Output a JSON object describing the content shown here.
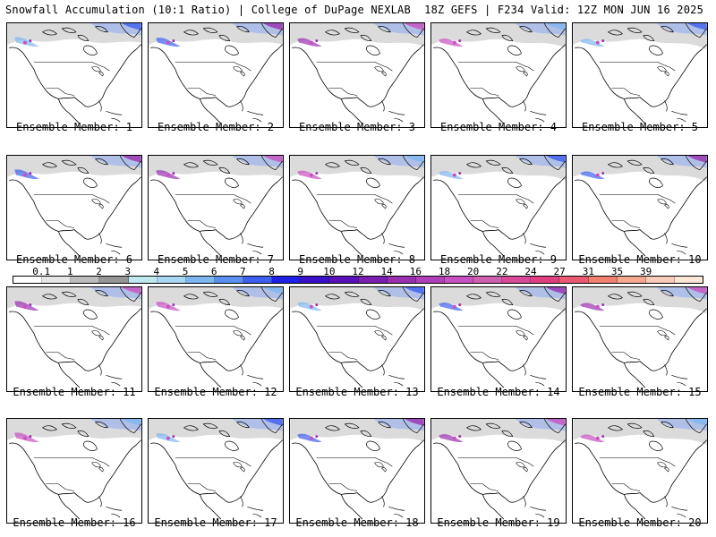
{
  "header": {
    "left": "Snowfall Accumulation (10:1 Ratio) | College of DuPage NEXLAB",
    "right": "18Z GEFS | F234 Valid: 12Z MON JUN 16 2025"
  },
  "members": [
    "Ensemble Member: 1",
    "Ensemble Member: 2",
    "Ensemble Member: 3",
    "Ensemble Member: 4",
    "Ensemble Member: 5",
    "Ensemble Member: 6",
    "Ensemble Member: 7",
    "Ensemble Member: 8",
    "Ensemble Member: 9",
    "Ensemble Member: 10",
    "Ensemble Member: 11",
    "Ensemble Member: 12",
    "Ensemble Member: 13",
    "Ensemble Member: 14",
    "Ensemble Member: 15",
    "Ensemble Member: 16",
    "Ensemble Member: 17",
    "Ensemble Member: 18",
    "Ensemble Member: 19",
    "Ensemble Member: 20"
  ],
  "colorbar": {
    "labels": [
      "0.1",
      "1",
      "2",
      "3",
      "4",
      "5",
      "6",
      "7",
      "8",
      "9",
      "10",
      "12",
      "14",
      "16",
      "18",
      "20",
      "22",
      "24",
      "27",
      "31",
      "35",
      "39"
    ],
    "colors": [
      "#ffffff",
      "#e6e6e6",
      "#bdbdbd",
      "#969696",
      "#bfe8f0",
      "#a9d8f5",
      "#7fb6f0",
      "#5b8ff0",
      "#3f5ff0",
      "#2020e6",
      "#3a10c8",
      "#5a10b8",
      "#7a20b0",
      "#9a30b0",
      "#b040b8",
      "#c850c0",
      "#d060b0",
      "#d84a98",
      "#e04080",
      "#e85a70",
      "#f08070",
      "#f4a890",
      "#f8ccb8",
      "#fbe6d8"
    ]
  }
}
